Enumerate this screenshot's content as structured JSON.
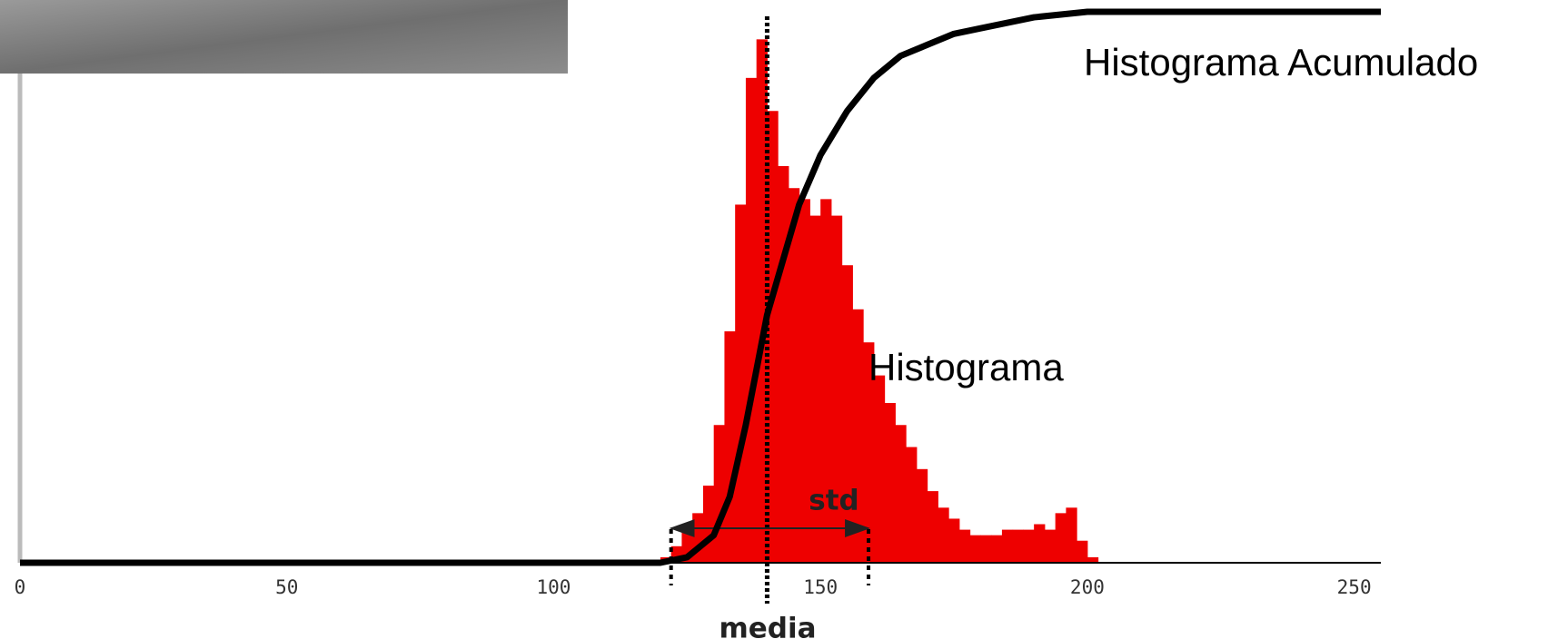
{
  "chart_data": {
    "type": "histogram",
    "x_label": "media",
    "bins": [
      120,
      122,
      124,
      126,
      128,
      130,
      132,
      134,
      136,
      138,
      140,
      142,
      144,
      146,
      148,
      150,
      152,
      154,
      156,
      158,
      160,
      162,
      164,
      166,
      168,
      170,
      172,
      174,
      176,
      178,
      180,
      182,
      184,
      186,
      188,
      190,
      192,
      194,
      196,
      198,
      200,
      202
    ],
    "counts": [
      1,
      3,
      6,
      9,
      14,
      25,
      42,
      65,
      88,
      95,
      82,
      72,
      68,
      66,
      63,
      66,
      63,
      54,
      46,
      40,
      34,
      29,
      25,
      21,
      17,
      13,
      10,
      8,
      6,
      5,
      5,
      5,
      6,
      6,
      6,
      7,
      6,
      9,
      10,
      4,
      1
    ],
    "color": "#ee0000",
    "series": [
      {
        "name": "Histograma Acumulado",
        "color": "#000000",
        "x": [
          0,
          120,
          125,
          130,
          133,
          136,
          138,
          140,
          143,
          146,
          150,
          155,
          160,
          165,
          170,
          175,
          180,
          190,
          200,
          255
        ],
        "values": [
          0,
          0,
          1,
          5,
          12,
          25,
          35,
          45,
          55,
          65,
          74,
          82,
          88,
          92,
          94,
          96,
          97,
          99,
          100,
          100
        ]
      }
    ],
    "histogram_label": "Histograma",
    "mean": 140,
    "std_range": [
      122,
      159
    ],
    "std_label": "std",
    "xlim": [
      0,
      255
    ],
    "ylim": [
      0,
      100
    ],
    "xticks": [
      0,
      50,
      100,
      150,
      200,
      250
    ]
  }
}
